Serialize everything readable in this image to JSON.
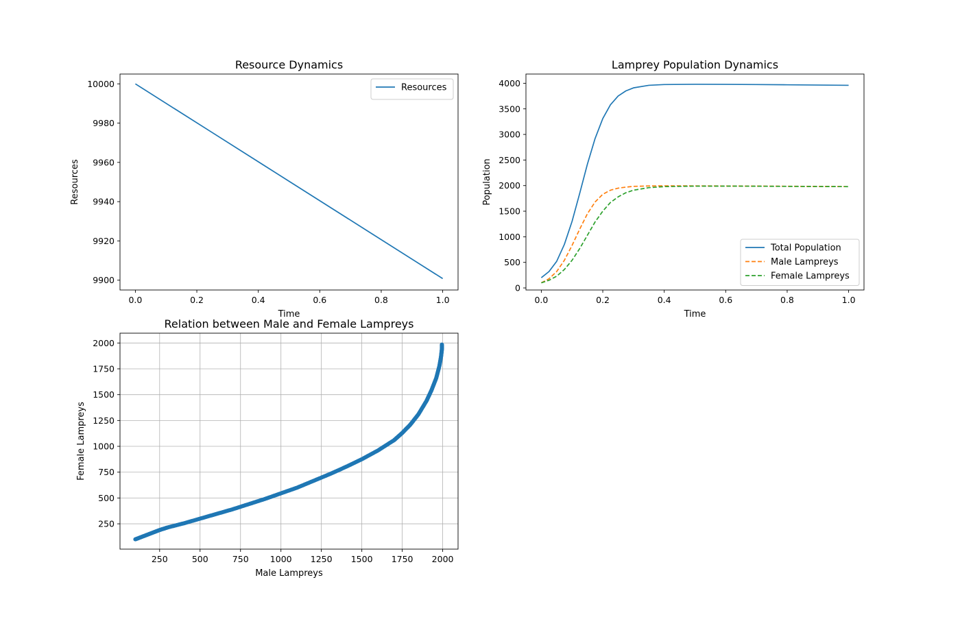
{
  "chart_data": [
    {
      "type": "line",
      "title": "Resource Dynamics",
      "xlabel": "Time",
      "ylabel": "Resources",
      "xlim": [
        -0.05,
        1.05
      ],
      "ylim": [
        9895,
        10005
      ],
      "x_ticks": [
        "0.0",
        "0.2",
        "0.4",
        "0.6",
        "0.8",
        "1.0"
      ],
      "y_ticks": [
        "9900",
        "9920",
        "9940",
        "9960",
        "9980",
        "10000"
      ],
      "grid": false,
      "legend_position": "upper right",
      "series": [
        {
          "name": "Resources",
          "color": "#1f77b4",
          "style": "solid",
          "x": [
            0.0,
            0.25,
            0.5,
            0.75,
            1.0
          ],
          "y": [
            10000,
            9975.2,
            9950.4,
            9925.6,
            9900.8
          ]
        }
      ]
    },
    {
      "type": "line",
      "title": "Lamprey Population Dynamics",
      "xlabel": "Time",
      "ylabel": "Population",
      "xlim": [
        -0.05,
        1.05
      ],
      "ylim": [
        -40,
        4180
      ],
      "x_ticks": [
        "0.0",
        "0.2",
        "0.4",
        "0.6",
        "0.8",
        "1.0"
      ],
      "y_ticks": [
        "0",
        "500",
        "1000",
        "1500",
        "2000",
        "2500",
        "3000",
        "3500",
        "4000"
      ],
      "grid": false,
      "legend_position": "lower right",
      "series": [
        {
          "name": "Total Population",
          "color": "#1f77b4",
          "style": "solid",
          "x": [
            0,
            0.025,
            0.05,
            0.075,
            0.1,
            0.125,
            0.15,
            0.175,
            0.2,
            0.225,
            0.25,
            0.275,
            0.3,
            0.35,
            0.4,
            0.5,
            0.6,
            0.7,
            0.8,
            0.9,
            1.0
          ],
          "y": [
            200,
            320,
            520,
            850,
            1300,
            1850,
            2420,
            2920,
            3310,
            3580,
            3750,
            3850,
            3910,
            3960,
            3975,
            3980,
            3978,
            3975,
            3970,
            3965,
            3960
          ]
        },
        {
          "name": "Male Lampreys",
          "color": "#ff7f0e",
          "style": "dashed",
          "x": [
            0,
            0.025,
            0.05,
            0.075,
            0.1,
            0.125,
            0.15,
            0.175,
            0.2,
            0.225,
            0.25,
            0.275,
            0.3,
            0.35,
            0.4,
            0.5,
            0.6,
            0.7,
            0.8,
            0.9,
            1.0
          ],
          "y": [
            100,
            180,
            320,
            540,
            830,
            1150,
            1450,
            1680,
            1830,
            1910,
            1950,
            1970,
            1985,
            1993,
            1995,
            1994,
            1992,
            1990,
            1987,
            1984,
            1980
          ]
        },
        {
          "name": "Female Lampreys",
          "color": "#2ca02c",
          "style": "dashed",
          "x": [
            0,
            0.025,
            0.05,
            0.075,
            0.1,
            0.125,
            0.15,
            0.175,
            0.2,
            0.225,
            0.25,
            0.275,
            0.3,
            0.35,
            0.4,
            0.5,
            0.6,
            0.7,
            0.8,
            0.9,
            1.0
          ],
          "y": [
            100,
            150,
            230,
            360,
            540,
            770,
            1030,
            1290,
            1500,
            1670,
            1780,
            1860,
            1910,
            1960,
            1980,
            1990,
            1990,
            1988,
            1985,
            1982,
            1980
          ]
        }
      ]
    },
    {
      "type": "scatter",
      "title": "Relation between Male and Female Lampreys",
      "xlabel": "Male Lampreys",
      "ylabel": "Female Lampreys",
      "xlim": [
        5,
        2095
      ],
      "ylim": [
        5,
        2095
      ],
      "x_ticks": [
        "250",
        "500",
        "750",
        "1000",
        "1250",
        "1500",
        "1750",
        "2000"
      ],
      "y_ticks": [
        "250",
        "500",
        "750",
        "1000",
        "1250",
        "1500",
        "1750",
        "2000"
      ],
      "grid": true,
      "series": [
        {
          "color": "#1f77b4",
          "x": [
            100,
            150,
            200,
            250,
            300,
            400,
            500,
            600,
            700,
            800,
            900,
            1000,
            1100,
            1200,
            1300,
            1400,
            1500,
            1600,
            1700,
            1750,
            1800,
            1850,
            1900,
            1930,
            1960,
            1980,
            1990,
            1995,
            1995
          ],
          "y": [
            100,
            130,
            160,
            190,
            215,
            255,
            300,
            345,
            390,
            440,
            490,
            545,
            600,
            665,
            730,
            800,
            875,
            960,
            1060,
            1130,
            1210,
            1310,
            1440,
            1540,
            1660,
            1780,
            1870,
            1940,
            1985
          ]
        }
      ]
    }
  ]
}
